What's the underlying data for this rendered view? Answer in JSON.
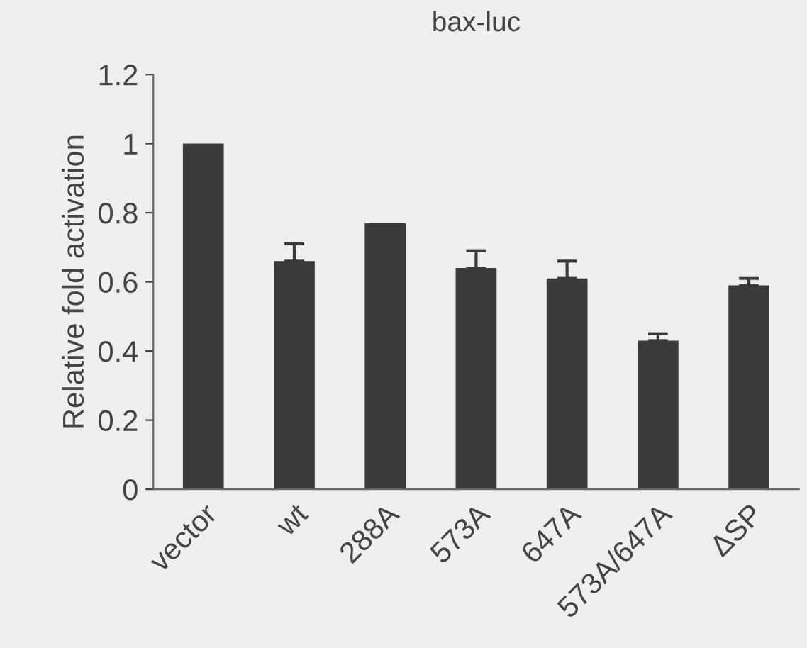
{
  "chart_data": {
    "type": "bar",
    "title": "bax-luc",
    "ylabel": "Relative fold activation",
    "categories": [
      "vector",
      "wt",
      "288A",
      "573A",
      "647A",
      "573A/647A",
      "ΔSP"
    ],
    "values": [
      1.0,
      0.66,
      0.77,
      0.64,
      0.61,
      0.43,
      0.59
    ],
    "errors": [
      null,
      [
        0.66,
        0.71
      ],
      null,
      [
        0.64,
        0.69
      ],
      [
        0.61,
        0.66
      ],
      [
        0.43,
        0.45
      ],
      [
        0.59,
        0.61
      ]
    ],
    "color": "#3a3a3a",
    "ylim": [
      0,
      1.2
    ],
    "yticks": [
      0,
      0.2,
      0.4,
      0.6,
      0.8,
      1,
      1.2
    ],
    "grid": false,
    "legend": false
  }
}
